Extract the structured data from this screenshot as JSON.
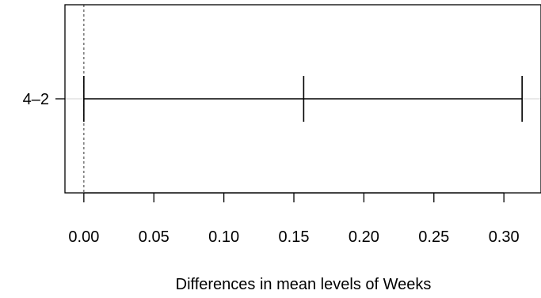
{
  "chart_data": {
    "type": "errorbar",
    "title": "",
    "xlabel": "Differences in mean levels of Weeks",
    "ylabel": "",
    "xlim": [
      -0.0135,
      0.3265
    ],
    "x_ticks": [
      0.0,
      0.05,
      0.1,
      0.15,
      0.2,
      0.25,
      0.3
    ],
    "x_tick_labels": [
      "0.00",
      "0.05",
      "0.10",
      "0.15",
      "0.20",
      "0.25",
      "0.30"
    ],
    "reference_line": 0,
    "grid": false,
    "comparisons": [
      {
        "label": "4–2",
        "diff": 0.157,
        "lwr": 0.0,
        "upr": 0.313
      }
    ],
    "colors": {
      "line": "#000000",
      "ref_line": "#555555",
      "row_guide": "#d3d3d3"
    }
  }
}
